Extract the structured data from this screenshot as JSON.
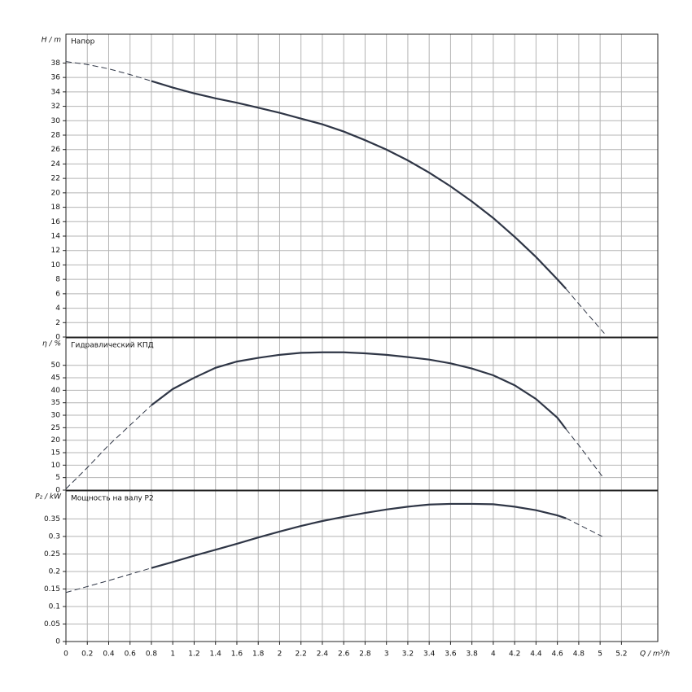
{
  "chart_data": [
    {
      "type": "line",
      "title": "Напор",
      "ylabel": "H / m",
      "xlim": [
        0,
        5.54
      ],
      "ylim": [
        0,
        42
      ],
      "yticks": [
        0,
        2,
        4,
        6,
        8,
        10,
        12,
        14,
        16,
        18,
        20,
        22,
        24,
        26,
        28,
        30,
        32,
        34,
        36,
        38
      ],
      "grid": true,
      "color": "#2f3646",
      "series": [
        {
          "dashed": true,
          "x": [
            0,
            0.2,
            0.4,
            0.6,
            0.8
          ],
          "values": [
            38.2,
            37.8,
            37.2,
            36.4,
            35.5
          ]
        },
        {
          "dashed": false,
          "x": [
            0.8,
            1.0,
            1.2,
            1.4,
            1.6,
            1.8,
            2.0,
            2.2,
            2.4,
            2.6,
            2.8,
            3.0,
            3.2,
            3.4,
            3.6,
            3.8,
            4.0,
            4.2,
            4.4,
            4.6,
            4.68
          ],
          "values": [
            35.5,
            34.6,
            33.8,
            33.1,
            32.5,
            31.8,
            31.1,
            30.3,
            29.5,
            28.5,
            27.3,
            26.0,
            24.5,
            22.8,
            20.9,
            18.8,
            16.5,
            13.9,
            11.1,
            8.0,
            6.7
          ]
        },
        {
          "dashed": true,
          "x": [
            4.68,
            4.8,
            5.04
          ],
          "values": [
            6.7,
            4.6,
            0.5
          ]
        }
      ]
    },
    {
      "type": "line",
      "title": "Гидравлический КПД",
      "ylabel": "η / %",
      "xlim": [
        0,
        5.54
      ],
      "ylim": [
        0,
        61
      ],
      "yticks": [
        0,
        5,
        10,
        15,
        20,
        25,
        30,
        35,
        40,
        45,
        50
      ],
      "grid": true,
      "color": "#2f3646",
      "series": [
        {
          "dashed": true,
          "x": [
            0,
            0.2,
            0.4,
            0.6,
            0.8
          ],
          "values": [
            0.5,
            9,
            18,
            26,
            34
          ]
        },
        {
          "dashed": false,
          "x": [
            0.8,
            1.0,
            1.2,
            1.4,
            1.6,
            1.8,
            2.0,
            2.2,
            2.4,
            2.6,
            2.8,
            3.0,
            3.2,
            3.4,
            3.6,
            3.8,
            4.0,
            4.2,
            4.4,
            4.6,
            4.68
          ],
          "values": [
            34,
            40.5,
            45,
            49,
            51.5,
            53,
            54.2,
            55,
            55.2,
            55.2,
            54.8,
            54.2,
            53.3,
            52.3,
            50.8,
            48.7,
            46,
            42,
            36.5,
            29,
            24.5
          ]
        },
        {
          "dashed": true,
          "x": [
            4.68,
            4.8,
            5.02
          ],
          "values": [
            24.5,
            18,
            5.5
          ]
        }
      ]
    },
    {
      "type": "line",
      "title": "Мощность на валу P2",
      "ylabel": "P₂ / kW",
      "xlabel": "Q / m³/h",
      "xlim": [
        0,
        5.54
      ],
      "ylim": [
        0,
        0.43
      ],
      "xticks": [
        0,
        0.2,
        0.4,
        0.6,
        0.8,
        1,
        1.2,
        1.4,
        1.6,
        1.8,
        2,
        2.2,
        2.4,
        2.6,
        2.8,
        3,
        3.2,
        3.4,
        3.6,
        3.8,
        4,
        4.2,
        4.4,
        4.6,
        4.8,
        5,
        5.2
      ],
      "yticks": [
        0,
        0.05,
        0.1,
        0.15,
        0.2,
        0.25,
        0.3,
        0.35
      ],
      "grid": true,
      "color": "#2f3646",
      "series": [
        {
          "dashed": true,
          "x": [
            0,
            0.2,
            0.4,
            0.6,
            0.8
          ],
          "values": [
            0.14,
            0.157,
            0.174,
            0.192,
            0.21
          ]
        },
        {
          "dashed": false,
          "x": [
            0.8,
            1.0,
            1.2,
            1.4,
            1.6,
            1.8,
            2.0,
            2.2,
            2.4,
            2.6,
            2.8,
            3.0,
            3.2,
            3.4,
            3.6,
            3.8,
            4.0,
            4.2,
            4.4,
            4.6,
            4.68
          ],
          "values": [
            0.21,
            0.227,
            0.245,
            0.262,
            0.279,
            0.297,
            0.314,
            0.33,
            0.344,
            0.356,
            0.367,
            0.377,
            0.385,
            0.391,
            0.393,
            0.393,
            0.392,
            0.385,
            0.375,
            0.36,
            0.352
          ]
        },
        {
          "dashed": true,
          "x": [
            4.68,
            5.02
          ],
          "values": [
            0.352,
            0.3
          ]
        }
      ]
    }
  ]
}
